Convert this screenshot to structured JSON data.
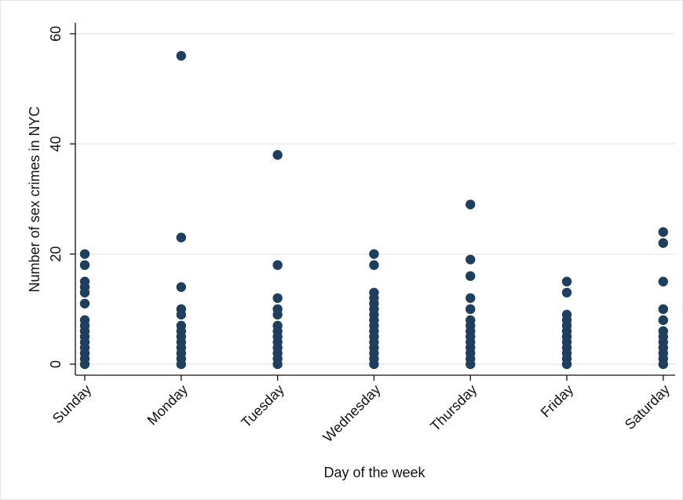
{
  "chart_data": {
    "type": "scatter",
    "x_label": "Day of the week",
    "y_label": "Number of sex crimes in NYC",
    "categories": [
      "Sunday",
      "Monday",
      "Tuesday",
      "Wednesday",
      "Thursday",
      "Friday",
      "Saturday"
    ],
    "values": [
      [
        0,
        1,
        2,
        3,
        4,
        5,
        6,
        7,
        8,
        11,
        13,
        14,
        15,
        18,
        20
      ],
      [
        0,
        1,
        2,
        3,
        4,
        5,
        6,
        7,
        9,
        10,
        14,
        23,
        56
      ],
      [
        0,
        1,
        2,
        3,
        4,
        5,
        6,
        7,
        9,
        10,
        12,
        18,
        38
      ],
      [
        0,
        1,
        2,
        3,
        4,
        5,
        6,
        7,
        8,
        9,
        10,
        11,
        12,
        13,
        18,
        20
      ],
      [
        0,
        1,
        2,
        3,
        4,
        5,
        6,
        7,
        8,
        10,
        12,
        16,
        19,
        29
      ],
      [
        0,
        1,
        2,
        3,
        4,
        5,
        6,
        7,
        8,
        9,
        13,
        15
      ],
      [
        0,
        1,
        2,
        3,
        4,
        5,
        6,
        8,
        10,
        15,
        22,
        24
      ]
    ],
    "color": "#1f3f5f",
    "ylim": [
      -2,
      62
    ],
    "yticks": [
      0,
      20,
      40,
      60
    ],
    "grid": true
  }
}
